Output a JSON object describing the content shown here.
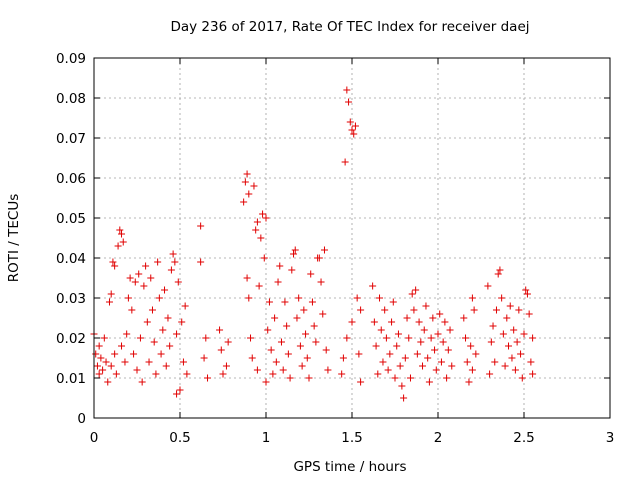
{
  "chart_data": {
    "type": "scatter",
    "title": "Day 236 of 2017, Rate Of TEC Index for receiver daej",
    "xlabel": "GPS time / hours",
    "ylabel": "ROTI / TECUs",
    "xlim": [
      0,
      3
    ],
    "ylim": [
      0,
      0.09
    ],
    "x_ticks": [
      "0",
      "0.5",
      "1",
      "1.5",
      "2",
      "2.5",
      "3"
    ],
    "y_ticks": [
      "0",
      "0.01",
      "0.02",
      "0.03",
      "0.04",
      "0.05",
      "0.06",
      "0.07",
      "0.08",
      "0.09"
    ],
    "grid": true,
    "marker": "+",
    "color": "#e00000",
    "series": [
      {
        "points": [
          [
            0.0,
            0.021
          ],
          [
            0.01,
            0.016
          ],
          [
            0.02,
            0.013
          ],
          [
            0.03,
            0.011
          ],
          [
            0.03,
            0.018
          ],
          [
            0.04,
            0.015
          ],
          [
            0.05,
            0.012
          ],
          [
            0.06,
            0.02
          ],
          [
            0.07,
            0.014
          ],
          [
            0.08,
            0.009
          ],
          [
            0.09,
            0.029
          ],
          [
            0.1,
            0.031
          ],
          [
            0.1,
            0.013
          ],
          [
            0.11,
            0.039
          ],
          [
            0.12,
            0.038
          ],
          [
            0.12,
            0.016
          ],
          [
            0.13,
            0.011
          ],
          [
            0.14,
            0.043
          ],
          [
            0.15,
            0.047
          ],
          [
            0.16,
            0.046
          ],
          [
            0.16,
            0.018
          ],
          [
            0.17,
            0.044
          ],
          [
            0.18,
            0.014
          ],
          [
            0.19,
            0.021
          ],
          [
            0.2,
            0.03
          ],
          [
            0.21,
            0.035
          ],
          [
            0.22,
            0.027
          ],
          [
            0.23,
            0.016
          ],
          [
            0.24,
            0.034
          ],
          [
            0.25,
            0.012
          ],
          [
            0.26,
            0.036
          ],
          [
            0.27,
            0.02
          ],
          [
            0.28,
            0.009
          ],
          [
            0.29,
            0.033
          ],
          [
            0.3,
            0.038
          ],
          [
            0.31,
            0.024
          ],
          [
            0.32,
            0.014
          ],
          [
            0.33,
            0.035
          ],
          [
            0.34,
            0.027
          ],
          [
            0.35,
            0.019
          ],
          [
            0.36,
            0.011
          ],
          [
            0.37,
            0.039
          ],
          [
            0.38,
            0.03
          ],
          [
            0.39,
            0.016
          ],
          [
            0.4,
            0.022
          ],
          [
            0.41,
            0.032
          ],
          [
            0.42,
            0.013
          ],
          [
            0.43,
            0.025
          ],
          [
            0.44,
            0.018
          ],
          [
            0.45,
            0.037
          ],
          [
            0.46,
            0.041
          ],
          [
            0.47,
            0.039
          ],
          [
            0.48,
            0.021
          ],
          [
            0.48,
            0.006
          ],
          [
            0.49,
            0.034
          ],
          [
            0.5,
            0.007
          ],
          [
            0.51,
            0.024
          ],
          [
            0.52,
            0.014
          ],
          [
            0.53,
            0.028
          ],
          [
            0.54,
            0.011
          ],
          [
            0.62,
            0.048
          ],
          [
            0.62,
            0.039
          ],
          [
            0.64,
            0.015
          ],
          [
            0.65,
            0.02
          ],
          [
            0.66,
            0.01
          ],
          [
            0.73,
            0.022
          ],
          [
            0.74,
            0.017
          ],
          [
            0.75,
            0.011
          ],
          [
            0.77,
            0.013
          ],
          [
            0.78,
            0.019
          ],
          [
            0.87,
            0.054
          ],
          [
            0.88,
            0.059
          ],
          [
            0.89,
            0.061
          ],
          [
            0.89,
            0.035
          ],
          [
            0.9,
            0.056
          ],
          [
            0.9,
            0.03
          ],
          [
            0.91,
            0.02
          ],
          [
            0.92,
            0.015
          ],
          [
            0.93,
            0.058
          ],
          [
            0.94,
            0.047
          ],
          [
            0.95,
            0.049
          ],
          [
            0.95,
            0.012
          ],
          [
            0.96,
            0.033
          ],
          [
            0.97,
            0.045
          ],
          [
            0.98,
            0.051
          ],
          [
            0.99,
            0.04
          ],
          [
            1.0,
            0.05
          ],
          [
            1.0,
            0.009
          ],
          [
            1.01,
            0.022
          ],
          [
            1.02,
            0.029
          ],
          [
            1.03,
            0.017
          ],
          [
            1.04,
            0.011
          ],
          [
            1.05,
            0.025
          ],
          [
            1.06,
            0.014
          ],
          [
            1.07,
            0.034
          ],
          [
            1.08,
            0.038
          ],
          [
            1.09,
            0.019
          ],
          [
            1.1,
            0.012
          ],
          [
            1.11,
            0.029
          ],
          [
            1.12,
            0.023
          ],
          [
            1.13,
            0.016
          ],
          [
            1.14,
            0.01
          ],
          [
            1.15,
            0.037
          ],
          [
            1.16,
            0.041
          ],
          [
            1.17,
            0.042
          ],
          [
            1.18,
            0.025
          ],
          [
            1.19,
            0.03
          ],
          [
            1.2,
            0.018
          ],
          [
            1.21,
            0.013
          ],
          [
            1.22,
            0.027
          ],
          [
            1.23,
            0.021
          ],
          [
            1.24,
            0.015
          ],
          [
            1.25,
            0.01
          ],
          [
            1.26,
            0.036
          ],
          [
            1.27,
            0.029
          ],
          [
            1.28,
            0.023
          ],
          [
            1.29,
            0.019
          ],
          [
            1.3,
            0.04
          ],
          [
            1.31,
            0.04
          ],
          [
            1.32,
            0.034
          ],
          [
            1.33,
            0.026
          ],
          [
            1.34,
            0.042
          ],
          [
            1.35,
            0.017
          ],
          [
            1.36,
            0.012
          ],
          [
            1.44,
            0.011
          ],
          [
            1.45,
            0.015
          ],
          [
            1.46,
            0.064
          ],
          [
            1.47,
            0.02
          ],
          [
            1.47,
            0.082
          ],
          [
            1.48,
            0.079
          ],
          [
            1.49,
            0.074
          ],
          [
            1.5,
            0.072
          ],
          [
            1.5,
            0.024
          ],
          [
            1.51,
            0.071
          ],
          [
            1.52,
            0.073
          ],
          [
            1.53,
            0.03
          ],
          [
            1.54,
            0.016
          ],
          [
            1.55,
            0.027
          ],
          [
            1.55,
            0.009
          ],
          [
            1.62,
            0.033
          ],
          [
            1.63,
            0.024
          ],
          [
            1.64,
            0.018
          ],
          [
            1.65,
            0.011
          ],
          [
            1.66,
            0.03
          ],
          [
            1.67,
            0.022
          ],
          [
            1.68,
            0.014
          ],
          [
            1.69,
            0.027
          ],
          [
            1.7,
            0.02
          ],
          [
            1.71,
            0.012
          ],
          [
            1.72,
            0.016
          ],
          [
            1.73,
            0.024
          ],
          [
            1.74,
            0.029
          ],
          [
            1.75,
            0.01
          ],
          [
            1.76,
            0.018
          ],
          [
            1.77,
            0.021
          ],
          [
            1.78,
            0.013
          ],
          [
            1.79,
            0.008
          ],
          [
            1.8,
            0.005
          ],
          [
            1.81,
            0.015
          ],
          [
            1.82,
            0.025
          ],
          [
            1.83,
            0.02
          ],
          [
            1.84,
            0.01
          ],
          [
            1.85,
            0.031
          ],
          [
            1.86,
            0.027
          ],
          [
            1.87,
            0.032
          ],
          [
            1.88,
            0.016
          ],
          [
            1.89,
            0.024
          ],
          [
            1.9,
            0.019
          ],
          [
            1.91,
            0.013
          ],
          [
            1.92,
            0.022
          ],
          [
            1.93,
            0.028
          ],
          [
            1.94,
            0.015
          ],
          [
            1.95,
            0.009
          ],
          [
            1.96,
            0.02
          ],
          [
            1.97,
            0.025
          ],
          [
            1.98,
            0.017
          ],
          [
            1.99,
            0.012
          ],
          [
            2.0,
            0.021
          ],
          [
            2.01,
            0.026
          ],
          [
            2.02,
            0.014
          ],
          [
            2.03,
            0.019
          ],
          [
            2.04,
            0.024
          ],
          [
            2.05,
            0.01
          ],
          [
            2.06,
            0.017
          ],
          [
            2.07,
            0.022
          ],
          [
            2.08,
            0.013
          ],
          [
            2.15,
            0.025
          ],
          [
            2.16,
            0.02
          ],
          [
            2.17,
            0.014
          ],
          [
            2.18,
            0.009
          ],
          [
            2.19,
            0.018
          ],
          [
            2.2,
            0.03
          ],
          [
            2.2,
            0.012
          ],
          [
            2.21,
            0.027
          ],
          [
            2.22,
            0.016
          ],
          [
            2.29,
            0.033
          ],
          [
            2.3,
            0.011
          ],
          [
            2.31,
            0.019
          ],
          [
            2.32,
            0.023
          ],
          [
            2.33,
            0.014
          ],
          [
            2.34,
            0.027
          ],
          [
            2.35,
            0.036
          ],
          [
            2.36,
            0.037
          ],
          [
            2.37,
            0.03
          ],
          [
            2.38,
            0.021
          ],
          [
            2.39,
            0.013
          ],
          [
            2.4,
            0.025
          ],
          [
            2.41,
            0.018
          ],
          [
            2.42,
            0.028
          ],
          [
            2.43,
            0.015
          ],
          [
            2.44,
            0.022
          ],
          [
            2.45,
            0.012
          ],
          [
            2.46,
            0.019
          ],
          [
            2.47,
            0.027
          ],
          [
            2.48,
            0.016
          ],
          [
            2.49,
            0.01
          ],
          [
            2.5,
            0.021
          ],
          [
            2.51,
            0.032
          ],
          [
            2.52,
            0.031
          ],
          [
            2.53,
            0.026
          ],
          [
            2.54,
            0.014
          ],
          [
            2.55,
            0.02
          ],
          [
            2.55,
            0.011
          ]
        ]
      }
    ]
  }
}
